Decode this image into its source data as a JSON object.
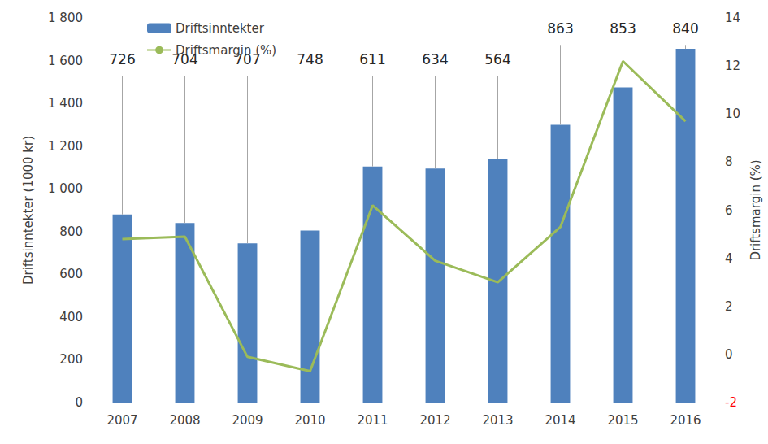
{
  "chart_data": {
    "type": "bar",
    "categories": [
      "2007",
      "2008",
      "2009",
      "2010",
      "2011",
      "2012",
      "2013",
      "2014",
      "2015",
      "2016"
    ],
    "series": [
      {
        "name": "Driftsinntekter",
        "type": "bar",
        "color": "#4f81bd",
        "values": [
          880,
          840,
          745,
          805,
          1105,
          1095,
          1140,
          1300,
          1475,
          1655
        ]
      },
      {
        "name": "Driftsmargin (%)",
        "type": "line",
        "color": "#9bbb59",
        "axis": "y2",
        "values": [
          4.8,
          4.9,
          -0.1,
          -0.7,
          6.2,
          3.9,
          3.0,
          5.3,
          12.2,
          9.7
        ]
      }
    ],
    "annotations": [
      726,
      704,
      707,
      748,
      611,
      634,
      564,
      863,
      853,
      840
    ],
    "ylabel": "Driftsinntekter (1000 kr)",
    "y2label": "Driftsmargin (%)",
    "ylim": [
      0,
      1800
    ],
    "yticks": [
      0,
      200,
      400,
      600,
      800,
      {
        "value": 1000,
        "label": "1 000"
      },
      {
        "value": 1200,
        "label": "1 200"
      },
      {
        "value": 1400,
        "label": "1 400"
      },
      {
        "value": 1600,
        "label": "1 600"
      },
      {
        "value": 1800,
        "label": "1 800"
      }
    ],
    "y2lim": [
      -2,
      14
    ],
    "y2ticks": [
      -2,
      0,
      2,
      4,
      6,
      8,
      10,
      12,
      14
    ],
    "legend": "upper left",
    "grid": false
  }
}
